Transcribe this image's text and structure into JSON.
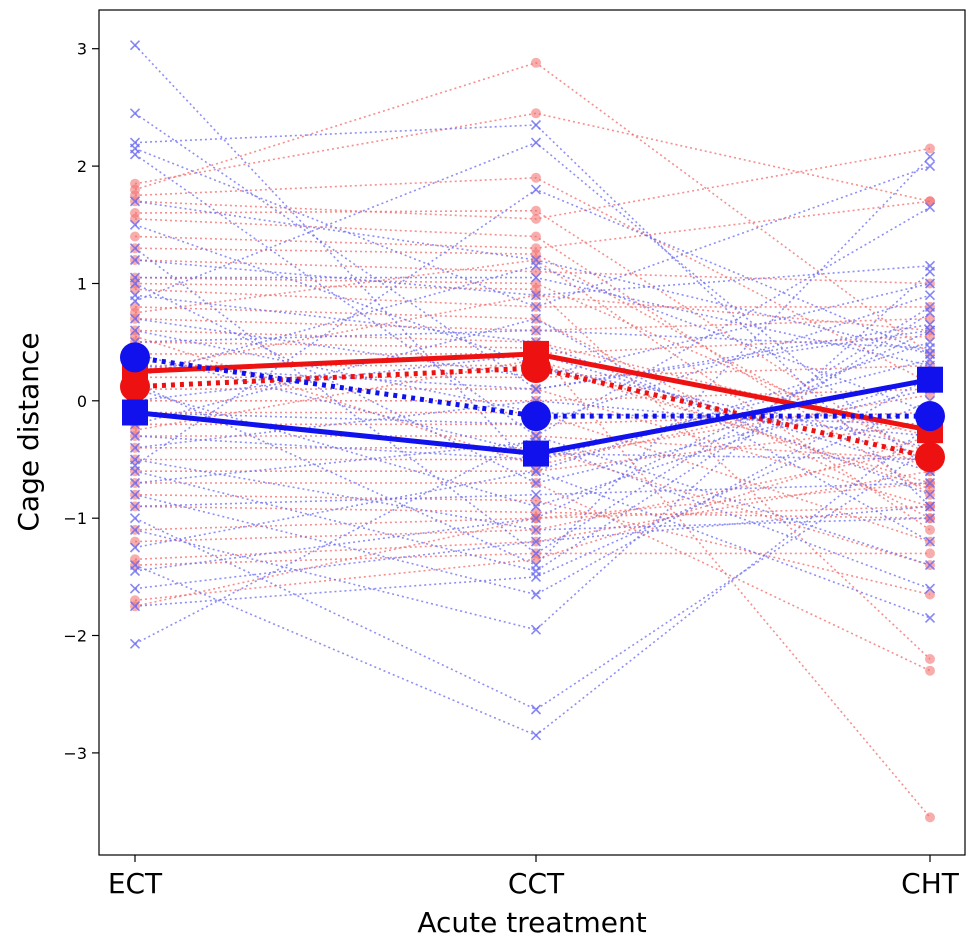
{
  "chart_data": {
    "type": "line",
    "xlabel": "Acute treatment",
    "ylabel": "Cage distance",
    "categories": [
      "ECT",
      "CCT",
      "CHT"
    ],
    "ylim": [
      -3.87,
      3.33
    ],
    "yticks": [
      3,
      2,
      1,
      0,
      -1,
      -2,
      -3
    ],
    "ytick_labels": [
      "3",
      "2",
      "1",
      "0",
      "−1",
      "−2",
      "−3"
    ],
    "grid": false,
    "colors": {
      "red": "#ee1111",
      "blue": "#1111ee",
      "red_light": "#f26a6a",
      "blue_light": "#6a6af2"
    },
    "individual_series": {
      "red": [
        [
          1.85,
          2.45,
          1.7
        ],
        [
          1.8,
          2.88,
          0.4
        ],
        [
          1.75,
          1.9,
          0.15
        ],
        [
          1.7,
          1.55,
          2.15
        ],
        [
          1.6,
          1.62,
          -0.55
        ],
        [
          1.55,
          1.4,
          -0.8
        ],
        [
          1.4,
          1.3,
          1.7
        ],
        [
          1.3,
          1.25,
          -0.6
        ],
        [
          1.2,
          1.1,
          1.0
        ],
        [
          1.05,
          1.0,
          -0.45
        ],
        [
          1.0,
          0.95,
          -2.2
        ],
        [
          0.95,
          0.8,
          0.8
        ],
        [
          0.8,
          0.7,
          -1.0
        ],
        [
          0.7,
          0.6,
          0.7
        ],
        [
          0.6,
          0.5,
          -0.3
        ],
        [
          0.5,
          0.45,
          -3.55
        ],
        [
          0.4,
          0.4,
          0.55
        ],
        [
          0.3,
          0.3,
          -0.7
        ],
        [
          0.2,
          0.2,
          0.3
        ],
        [
          0.1,
          0.1,
          -0.9
        ],
        [
          0.0,
          0.0,
          0.1
        ],
        [
          -0.1,
          -0.1,
          -1.2
        ],
        [
          -0.2,
          -0.2,
          -0.1
        ],
        [
          -0.3,
          -0.3,
          -0.5
        ],
        [
          -0.4,
          -0.4,
          -1.4
        ],
        [
          -0.5,
          -0.5,
          0.05
        ],
        [
          -0.6,
          -0.6,
          -0.2
        ],
        [
          -0.7,
          -0.7,
          -2.3
        ],
        [
          -0.8,
          -0.85,
          -1.65
        ],
        [
          -0.9,
          -0.95,
          -1.0
        ],
        [
          -1.1,
          -1.0,
          -0.7
        ],
        [
          -1.2,
          -1.1,
          -0.4
        ],
        [
          -1.35,
          -1.2,
          -0.6
        ],
        [
          -1.4,
          -1.3,
          -1.3
        ],
        [
          -1.7,
          -1.35,
          -0.3
        ],
        [
          -1.75,
          -1.0,
          -0.9
        ],
        [
          0.75,
          1.2,
          -1.1
        ],
        [
          0.25,
          0.9,
          0.6
        ],
        [
          -0.25,
          0.35,
          -0.75
        ],
        [
          0.55,
          -0.55,
          0.2
        ]
      ],
      "blue": [
        [
          3.03,
          -0.6,
          0.5
        ],
        [
          2.45,
          0.1,
          0.6
        ],
        [
          2.2,
          2.35,
          -0.9
        ],
        [
          2.15,
          0.8,
          2.0
        ],
        [
          2.1,
          -0.3,
          1.65
        ],
        [
          1.7,
          1.2,
          0.4
        ],
        [
          1.5,
          0.3,
          -0.4
        ],
        [
          1.3,
          -1.3,
          0.8
        ],
        [
          1.2,
          0.9,
          1.15
        ],
        [
          1.05,
          1.05,
          0.3
        ],
        [
          1.0,
          -0.7,
          0.1
        ],
        [
          0.9,
          0.5,
          -0.8
        ],
        [
          0.7,
          0.2,
          1.0
        ],
        [
          0.6,
          -0.1,
          -0.2
        ],
        [
          0.5,
          0.6,
          0.45
        ],
        [
          0.4,
          -0.45,
          -0.5
        ],
        [
          0.3,
          0.1,
          0.65
        ],
        [
          0.2,
          1.15,
          -0.1
        ],
        [
          0.1,
          -0.9,
          0.2
        ],
        [
          0.0,
          0.4,
          -0.6
        ],
        [
          -0.1,
          -0.2,
          0.9
        ],
        [
          -0.2,
          0.7,
          -1.2
        ],
        [
          -0.3,
          -0.5,
          0.35
        ],
        [
          -0.4,
          0.0,
          -0.3
        ],
        [
          -0.5,
          -1.1,
          -1.0
        ],
        [
          -0.6,
          -1.45,
          0.75
        ],
        [
          -0.7,
          -0.35,
          -1.6
        ],
        [
          -0.8,
          -1.65,
          0.2
        ],
        [
          -0.9,
          -0.8,
          -0.7
        ],
        [
          -1.0,
          -2.63,
          -0.4
        ],
        [
          -1.1,
          -1.95,
          1.1
        ],
        [
          -1.25,
          -0.6,
          -1.85
        ],
        [
          -1.4,
          -2.85,
          -0.2
        ],
        [
          -1.45,
          -1.0,
          0.6
        ],
        [
          -1.6,
          -1.2,
          -0.9
        ],
        [
          -1.75,
          -1.5,
          0.0
        ],
        [
          -2.07,
          -0.3,
          -1.4
        ],
        [
          0.85,
          2.2,
          -0.6
        ],
        [
          -0.55,
          1.8,
          0.4
        ],
        [
          0.15,
          -1.4,
          2.08
        ]
      ]
    },
    "mean_series": [
      {
        "group": "red",
        "style": "solid",
        "marker": "square",
        "values": [
          0.25,
          0.4,
          -0.25
        ]
      },
      {
        "group": "red",
        "style": "dotted",
        "marker": "circle",
        "values": [
          0.12,
          0.28,
          -0.48
        ]
      },
      {
        "group": "blue",
        "style": "solid",
        "marker": "square",
        "values": [
          -0.1,
          -0.45,
          0.18
        ]
      },
      {
        "group": "blue",
        "style": "dotted",
        "marker": "circle",
        "values": [
          0.37,
          -0.13,
          -0.13
        ]
      }
    ]
  }
}
